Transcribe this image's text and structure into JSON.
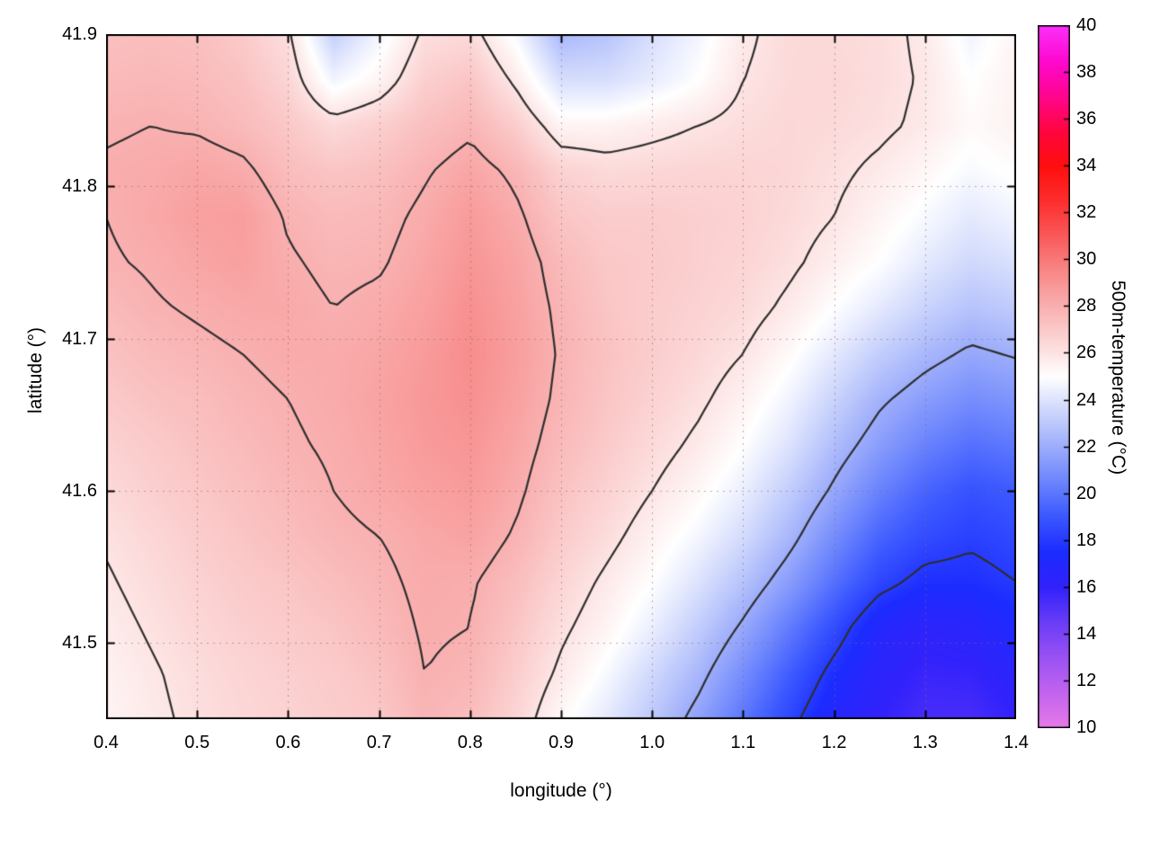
{
  "chart_data": {
    "type": "heatmap",
    "title": "",
    "xlabel": "longitude (°)",
    "ylabel": "latitude (°)",
    "colorbar_label": "500m-temperature (°C)",
    "xlim": [
      0.4,
      1.4
    ],
    "ylim": [
      41.45,
      41.9
    ],
    "x_ticks": [
      0.4,
      0.5,
      0.6,
      0.7,
      0.8,
      0.9,
      1.0,
      1.1,
      1.2,
      1.3,
      1.4
    ],
    "x_tick_labels": [
      "0.4",
      "0.5",
      "0.6",
      "0.7",
      "0.8",
      "0.9",
      "1.0",
      "1.1",
      "1.2",
      "1.3",
      "1.4"
    ],
    "y_ticks": [
      41.5,
      41.6,
      41.7,
      41.8,
      41.9
    ],
    "y_tick_labels": [
      "41.5",
      "41.6",
      "41.7",
      "41.8",
      "41.9"
    ],
    "grid_on": true,
    "contour_levels": [
      18,
      22,
      26,
      28
    ],
    "contour_color": "#2e2e2e",
    "colorbar": {
      "min": 10,
      "max": 40,
      "ticks": [
        10,
        12,
        14,
        16,
        18,
        20,
        22,
        24,
        26,
        28,
        30,
        32,
        34,
        36,
        38,
        40
      ],
      "tick_labels": [
        "10",
        "12",
        "14",
        "16",
        "18",
        "20",
        "22",
        "24",
        "26",
        "28",
        "30",
        "32",
        "34",
        "36",
        "38",
        "40"
      ],
      "palette": [
        {
          "v": 10,
          "c": "#e87ae8"
        },
        {
          "v": 11.5,
          "c": "#c364ef"
        },
        {
          "v": 13,
          "c": "#9a52f3"
        },
        {
          "v": 14.5,
          "c": "#6a3df7"
        },
        {
          "v": 16,
          "c": "#3222fb"
        },
        {
          "v": 17.5,
          "c": "#1c2cff"
        },
        {
          "v": 19,
          "c": "#3b58ff"
        },
        {
          "v": 20.5,
          "c": "#6c85fd"
        },
        {
          "v": 22,
          "c": "#9dadfb"
        },
        {
          "v": 23.5,
          "c": "#cdd6fc"
        },
        {
          "v": 25,
          "c": "#ffffff"
        },
        {
          "v": 26.5,
          "c": "#fcd7d7"
        },
        {
          "v": 28,
          "c": "#f9b0b0"
        },
        {
          "v": 29.5,
          "c": "#f88888"
        },
        {
          "v": 31,
          "c": "#fa5a5a"
        },
        {
          "v": 32.5,
          "c": "#fd2e2e"
        },
        {
          "v": 34,
          "c": "#ff0f0f"
        },
        {
          "v": 35.5,
          "c": "#ff0540"
        },
        {
          "v": 37,
          "c": "#ff0590"
        },
        {
          "v": 38.5,
          "c": "#fe0ad0"
        },
        {
          "v": 40,
          "c": "#fb30fb"
        }
      ]
    },
    "grid": {
      "lon0": 0.4,
      "dlon": 0.05,
      "cols": 21,
      "lat0": 41.9,
      "dlat": -0.03,
      "rows": 16,
      "values": [
        [
          27.4,
          27.5,
          27.4,
          27.0,
          26.2,
          23.2,
          24.6,
          26.2,
          26.4,
          24.8,
          22.4,
          22.8,
          23.8,
          24.6,
          25.8,
          26.4,
          26.4,
          26.3,
          25.8,
          24.6,
          25.4
        ],
        [
          27.6,
          27.7,
          27.6,
          27.3,
          26.6,
          24.6,
          25.4,
          26.8,
          27.2,
          25.8,
          23.8,
          23.8,
          24.3,
          25.0,
          26.0,
          26.4,
          26.5,
          26.3,
          25.9,
          25.0,
          25.5
        ],
        [
          27.9,
          28.0,
          27.9,
          27.6,
          27.1,
          26.4,
          26.8,
          27.4,
          27.8,
          26.9,
          25.4,
          25.4,
          25.7,
          26.0,
          26.3,
          26.5,
          26.4,
          26.2,
          25.8,
          25.2,
          25.5
        ],
        [
          28.1,
          28.2,
          28.4,
          28.2,
          27.5,
          27.2,
          27.4,
          27.9,
          28.4,
          27.8,
          26.7,
          26.4,
          26.5,
          26.6,
          26.6,
          26.5,
          26.2,
          25.8,
          25.3,
          24.8,
          25.1
        ],
        [
          28.0,
          28.3,
          28.6,
          28.7,
          27.9,
          27.6,
          27.7,
          28.2,
          28.8,
          28.2,
          27.2,
          26.9,
          26.9,
          26.8,
          26.7,
          26.4,
          26.0,
          25.4,
          24.8,
          24.2,
          24.6
        ],
        [
          27.9,
          28.1,
          28.4,
          28.6,
          28.1,
          27.8,
          27.9,
          28.4,
          29.0,
          28.5,
          27.6,
          27.1,
          27.0,
          26.8,
          26.6,
          26.2,
          25.6,
          25.0,
          24.2,
          23.6,
          23.9
        ],
        [
          27.6,
          27.9,
          28.1,
          28.3,
          28.3,
          28.0,
          28.2,
          28.6,
          29.2,
          28.6,
          27.8,
          27.2,
          26.9,
          26.7,
          26.4,
          25.8,
          25.0,
          24.2,
          23.4,
          22.8,
          23.1
        ],
        [
          27.3,
          27.6,
          27.8,
          28.0,
          28.2,
          28.2,
          28.4,
          28.8,
          29.3,
          28.7,
          27.9,
          27.3,
          26.9,
          26.5,
          26.0,
          25.2,
          24.2,
          23.2,
          22.4,
          21.8,
          22.1
        ],
        [
          27.0,
          27.3,
          27.5,
          27.8,
          28.0,
          28.2,
          28.5,
          28.9,
          29.2,
          28.6,
          27.8,
          27.2,
          26.7,
          26.2,
          25.5,
          24.6,
          23.4,
          22.2,
          21.4,
          20.8,
          21.1
        ],
        [
          26.7,
          27.0,
          27.3,
          27.6,
          27.9,
          28.1,
          28.4,
          28.8,
          29.0,
          28.4,
          27.6,
          27.0,
          26.4,
          25.8,
          25.0,
          24.0,
          22.6,
          21.4,
          20.4,
          19.8,
          20.1
        ],
        [
          26.4,
          26.8,
          27.1,
          27.4,
          27.7,
          28.0,
          28.3,
          28.6,
          28.8,
          28.2,
          27.3,
          26.7,
          26.0,
          25.3,
          24.4,
          23.2,
          21.8,
          20.4,
          19.4,
          18.8,
          19.1
        ],
        [
          26.1,
          26.5,
          26.9,
          27.2,
          27.5,
          27.8,
          28.0,
          28.3,
          28.5,
          27.9,
          27.0,
          26.3,
          25.5,
          24.7,
          23.7,
          22.4,
          20.8,
          19.4,
          18.6,
          18.2,
          18.5
        ],
        [
          25.9,
          26.3,
          26.7,
          27.0,
          27.2,
          27.5,
          27.8,
          28.2,
          28.1,
          27.5,
          26.6,
          25.8,
          25.0,
          24.0,
          22.8,
          21.4,
          19.8,
          18.4,
          17.6,
          17.6,
          18.0
        ],
        [
          25.7,
          26.1,
          26.5,
          26.8,
          27.0,
          27.2,
          27.6,
          28.1,
          28.0,
          27.2,
          26.2,
          25.4,
          24.4,
          23.2,
          21.8,
          20.2,
          18.6,
          16.9,
          16.3,
          16.6,
          17.2
        ],
        [
          25.5,
          25.9,
          26.3,
          26.6,
          26.8,
          27.0,
          27.3,
          28.0,
          27.8,
          26.9,
          25.8,
          24.8,
          23.6,
          22.4,
          20.8,
          19.2,
          17.6,
          16.4,
          15.8,
          15.9,
          16.4
        ],
        [
          25.4,
          25.8,
          26.2,
          26.5,
          26.7,
          26.9,
          27.1,
          27.8,
          27.5,
          26.6,
          25.2,
          24.2,
          23.0,
          21.6,
          20.0,
          18.4,
          16.8,
          16.0,
          15.4,
          15.4,
          16.0
        ]
      ]
    }
  }
}
